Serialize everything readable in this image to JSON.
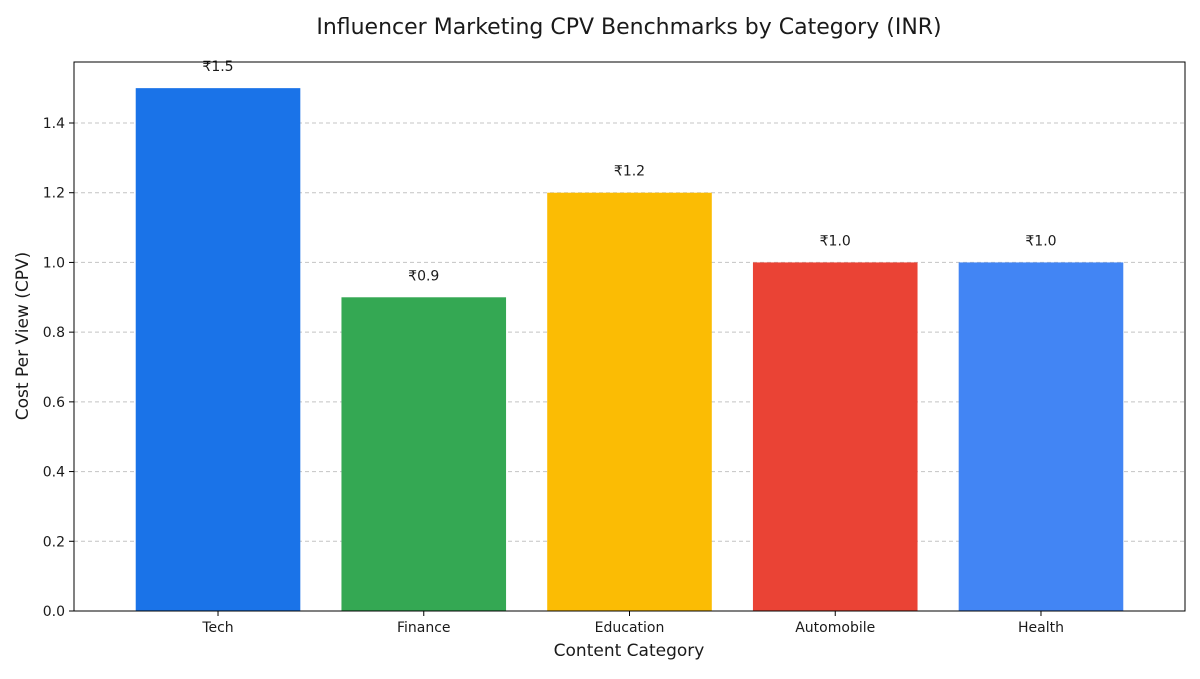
{
  "chart_data": {
    "type": "bar",
    "title": "Influencer Marketing CPV Benchmarks by Category (INR)",
    "xlabel": "Content Category",
    "ylabel": "Cost Per View (CPV)",
    "categories": [
      "Tech",
      "Finance",
      "Education",
      "Automobile",
      "Health"
    ],
    "values": [
      1.5,
      0.9,
      1.2,
      1.0,
      1.0
    ],
    "data_labels": [
      "₹1.5",
      "₹0.9",
      "₹1.2",
      "₹1.0",
      "₹1.0"
    ],
    "colors": [
      "#1a73e8",
      "#34a853",
      "#fbbc04",
      "#ea4335",
      "#4285f4"
    ],
    "ylim": [
      0,
      1.575
    ],
    "yticks": [
      0.0,
      0.2,
      0.4,
      0.6,
      0.8,
      1.0,
      1.2,
      1.4
    ],
    "ytick_labels": [
      "0.0",
      "0.2",
      "0.4",
      "0.6",
      "0.8",
      "1.0",
      "1.2",
      "1.4"
    ],
    "grid": "horizontal dashed",
    "legend": "none"
  }
}
